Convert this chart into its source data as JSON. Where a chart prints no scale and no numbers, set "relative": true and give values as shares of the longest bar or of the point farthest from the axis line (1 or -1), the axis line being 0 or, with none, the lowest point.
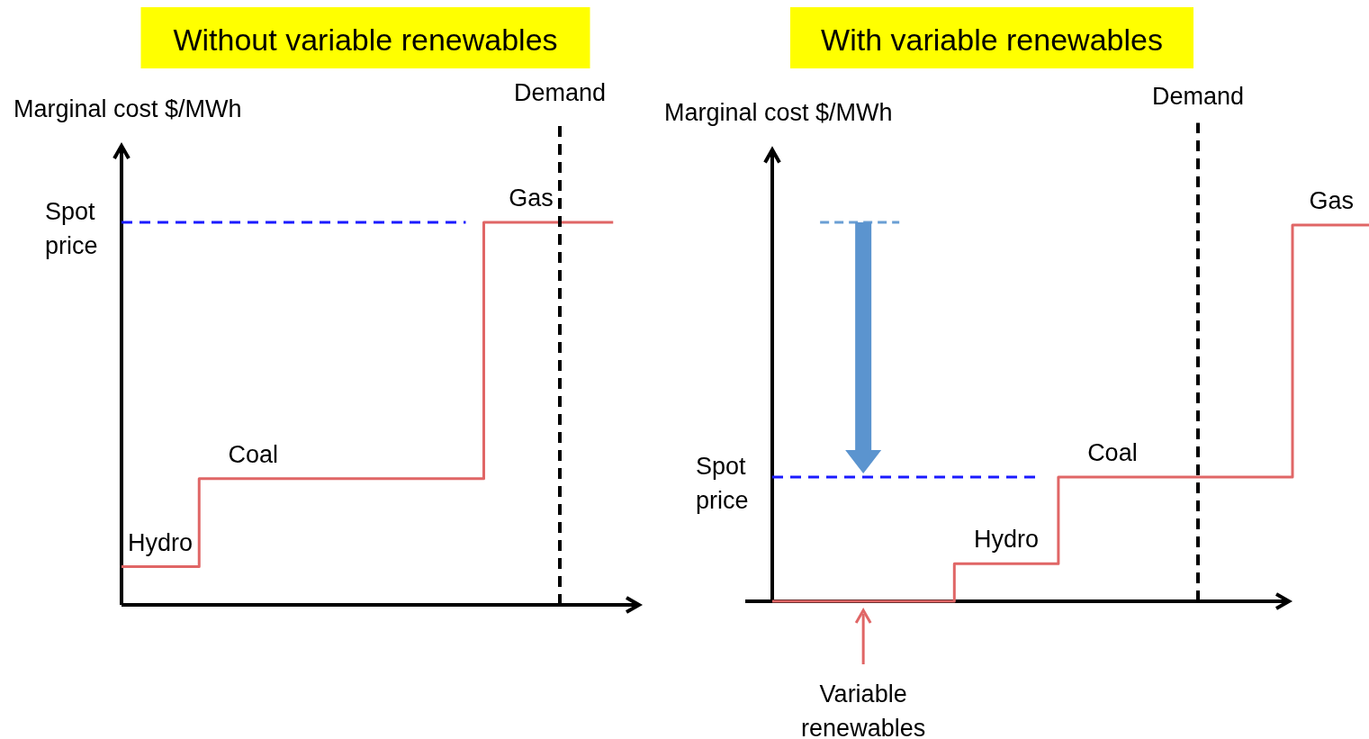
{
  "chart_data": [
    {
      "type": "step",
      "title": "Without variable renewables",
      "ylabel": "Marginal cost $/MWh",
      "relative": true,
      "categories": [
        null,
        null,
        null,
        null,
        null,
        null,
        null,
        null,
        null,
        null,
        null,
        null,
        null,
        null,
        null,
        null,
        null,
        null,
        null,
        null
      ],
      "series": [
        {
          "color": "#e06666",
          "values": [
            0.1,
            0.1,
            0.1,
            0.33,
            0.33,
            0.33,
            0.33,
            0.33,
            0.33,
            0.33,
            0.33,
            0.33,
            0.33,
            0.33,
            1.0,
            1.0,
            1.0,
            1.0,
            1.0,
            1.0
          ]
        }
      ],
      "ref_lines": [
        {
          "axis": "y",
          "value": 1.0,
          "label": "Spot price",
          "color": "#1a1aff",
          "line_style": "dashed"
        },
        {
          "axis": "x",
          "label": "Demand",
          "color": "#000000",
          "line_style": "dashed"
        }
      ],
      "annotations": [
        "Hydro",
        "Coal",
        "Gas"
      ]
    },
    {
      "type": "step",
      "title": "With variable renewables",
      "ylabel": "Marginal cost $/MWh",
      "relative": true,
      "categories": [
        null,
        null,
        null,
        null,
        null,
        null,
        null,
        null,
        null,
        null,
        null,
        null,
        null,
        null,
        null,
        null,
        null,
        null,
        null,
        null,
        null,
        null,
        null,
        null
      ],
      "series": [
        {
          "color": "#e06666",
          "values": [
            0,
            0,
            0,
            0,
            0,
            0,
            0,
            0.1,
            0.1,
            0.1,
            0.1,
            0.33,
            0.33,
            0.33,
            0.33,
            0.33,
            0.33,
            0.33,
            0.33,
            0.33,
            1.0,
            1.0,
            1.0,
            1.0
          ]
        }
      ],
      "ref_lines": [
        {
          "axis": "y",
          "value": 0.33,
          "label": "Spot price",
          "color": "#1a1aff",
          "line_style": "dashed"
        },
        {
          "axis": "x",
          "label": "Demand",
          "color": "#000000",
          "line_style": "dashed"
        }
      ],
      "annotations": [
        "Variable renewables",
        "Hydro",
        "Coal",
        "Gas"
      ]
    }
  ]
}
